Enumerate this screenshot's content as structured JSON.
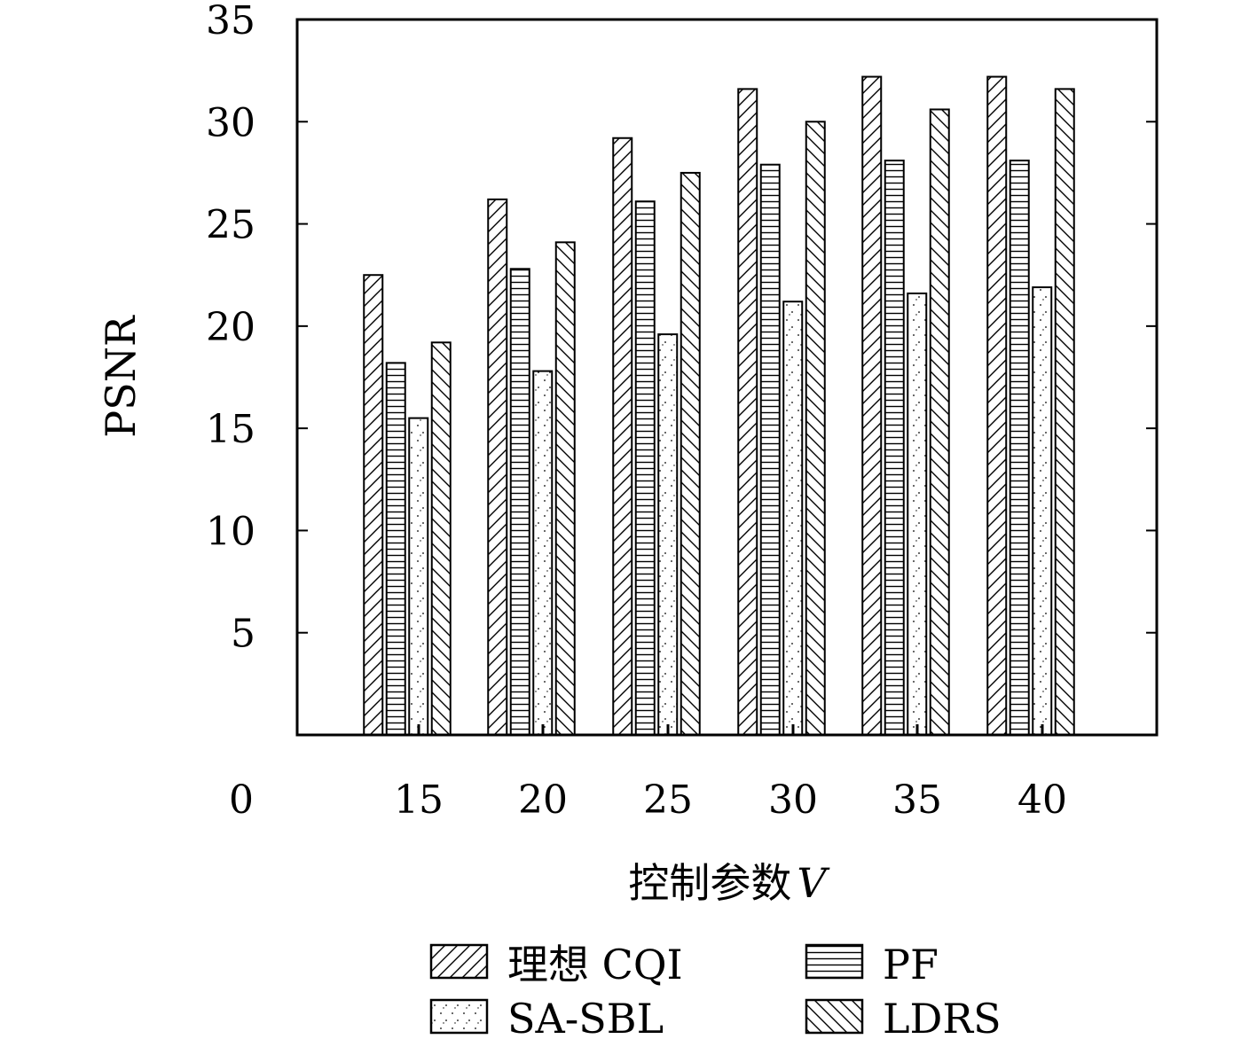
{
  "chart_data": {
    "type": "bar",
    "title": "",
    "xlabel": "控制参数",
    "xlabel_var": "V",
    "ylabel": "PSNR",
    "categories": [
      "15",
      "20",
      "25",
      "30",
      "35",
      "40"
    ],
    "y_ticks": [
      "0",
      "5",
      "10",
      "15",
      "20",
      "25",
      "30",
      "35"
    ],
    "ylim": [
      0,
      35
    ],
    "grid": false,
    "legend_position": "bottom",
    "series": [
      {
        "name": "理想 CQI",
        "pattern": "diagonal-up",
        "values": [
          22.5,
          26.2,
          29.2,
          31.6,
          32.2,
          32.2
        ]
      },
      {
        "name": "PF",
        "pattern": "horizontal",
        "values": [
          18.2,
          22.8,
          26.1,
          27.9,
          28.1,
          28.1
        ]
      },
      {
        "name": "SA-SBL",
        "pattern": "dots",
        "values": [
          15.5,
          17.8,
          19.6,
          21.2,
          21.6,
          21.9
        ]
      },
      {
        "name": "LDRS",
        "pattern": "diagonal-down",
        "values": [
          19.2,
          24.1,
          27.5,
          30.0,
          30.6,
          31.6
        ]
      }
    ],
    "colors": {
      "stroke": "#000000",
      "fill": "#ffffff"
    }
  }
}
